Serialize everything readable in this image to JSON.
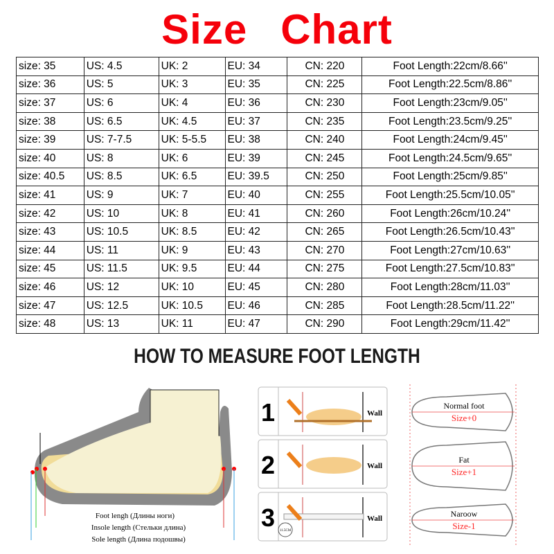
{
  "title": {
    "word1": "Size",
    "word2": "Chart",
    "color": "#f5000a"
  },
  "table": {
    "rows": [
      [
        "size: 35",
        "US: 4.5",
        "UK: 2",
        "EU: 34",
        "CN: 220",
        "Foot Length:22cm/8.66''"
      ],
      [
        "size: 36",
        "US: 5",
        "UK: 3",
        "EU: 35",
        "CN: 225",
        "Foot Length:22.5cm/8.86''"
      ],
      [
        "size: 37",
        "US: 6",
        "UK: 4",
        "EU: 36",
        "CN: 230",
        "Foot Length:23cm/9.05''"
      ],
      [
        "size: 38",
        "US: 6.5",
        "UK: 4.5",
        "EU: 37",
        "CN: 235",
        "Foot Length:23.5cm/9.25''"
      ],
      [
        "size: 39",
        "US: 7-7.5",
        "UK: 5-5.5",
        "EU: 38",
        "CN: 240",
        "Foot Length:24cm/9.45''"
      ],
      [
        "size: 40",
        "US: 8",
        "UK: 6",
        "EU: 39",
        "CN: 245",
        "Foot Length:24.5cm/9.65''"
      ],
      [
        "size: 40.5",
        "US: 8.5",
        "UK: 6.5",
        "EU: 39.5",
        "CN: 250",
        "Foot Length:25cm/9.85''"
      ],
      [
        "size: 41",
        "US: 9",
        "UK: 7",
        "EU: 40",
        "CN: 255",
        "Foot Length:25.5cm/10.05''"
      ],
      [
        "size: 42",
        "US: 10",
        "UK: 8",
        "EU: 41",
        "CN: 260",
        "Foot Length:26cm/10.24''"
      ],
      [
        "size: 43",
        "US: 10.5",
        "UK: 8.5",
        "EU: 42",
        "CN: 265",
        "Foot Length:26.5cm/10.43''"
      ],
      [
        "size: 44",
        "US: 11",
        "UK: 9",
        "EU: 43",
        "CN: 270",
        "Foot Length:27cm/10.63''"
      ],
      [
        "size: 45",
        "US: 11.5",
        "UK: 9.5",
        "EU: 44",
        "CN: 275",
        "Foot Length:27.5cm/10.83''"
      ],
      [
        "size: 46",
        "US: 12",
        "UK: 10",
        "EU: 45",
        "CN: 280",
        "Foot Length:28cm/11.03''"
      ],
      [
        "size: 47",
        "US: 12.5",
        "UK: 10.5",
        "EU: 46",
        "CN: 285",
        "Foot Length:28.5cm/11.22''"
      ],
      [
        "size: 48",
        "US: 13",
        "UK: 11",
        "EU: 47",
        "CN: 290",
        "Foot Length:29cm/11.42''"
      ]
    ]
  },
  "how_to": "HOW TO MEASURE FOOT LENGTH",
  "shoe": {
    "foot": "Foot lengh (Длины ноги)",
    "insole": "Insole length (Стельки длина)",
    "sole": "Sole length (Длина подошвы)"
  },
  "steps": [
    {
      "num": "1",
      "wall": "Wall"
    },
    {
      "num": "2",
      "wall": "Wall"
    },
    {
      "num": "3",
      "wall": "Wall",
      "ruler": "11.5CM"
    }
  ],
  "feet": [
    {
      "type": "Normal foot",
      "size": "Size+0"
    },
    {
      "type": "Fat",
      "size": "Size+1"
    },
    {
      "type": "Naroow",
      "size": "Size-1"
    }
  ]
}
